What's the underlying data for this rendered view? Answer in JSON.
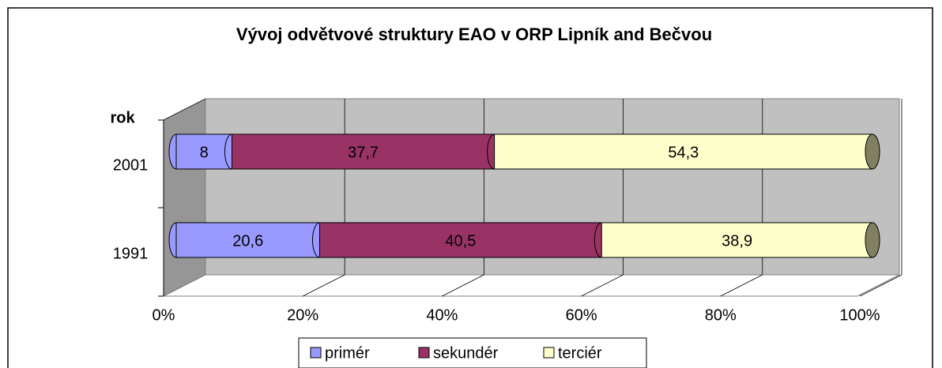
{
  "chart_data": {
    "type": "stacked_bar_horizontal_3d",
    "title": "Vývoj odvětvové struktury EAO v ORP Lipník and Bečvou",
    "y_label": "rok",
    "categories": [
      "2001",
      "1991"
    ],
    "series": [
      {
        "name": "primér",
        "color": "#9999ff",
        "values": [
          8,
          20.6
        ],
        "value_labels": [
          "8",
          "20,6"
        ]
      },
      {
        "name": "sekundér",
        "color": "#993366",
        "values": [
          37.7,
          40.5
        ],
        "value_labels": [
          "37,7",
          "40,5"
        ]
      },
      {
        "name": "terciér",
        "color": "#ffffcc",
        "values": [
          54.3,
          38.9
        ],
        "value_labels": [
          "54,3",
          "38,9"
        ]
      }
    ],
    "xlim": [
      0,
      100
    ],
    "xticks": [
      {
        "value": 0,
        "label": "0%"
      },
      {
        "value": 20,
        "label": "20%"
      },
      {
        "value": 40,
        "label": "40%"
      },
      {
        "value": 60,
        "label": "60%"
      },
      {
        "value": 80,
        "label": "80%"
      },
      {
        "value": 100,
        "label": "100%"
      }
    ],
    "grid": true,
    "legend": "bottom"
  }
}
